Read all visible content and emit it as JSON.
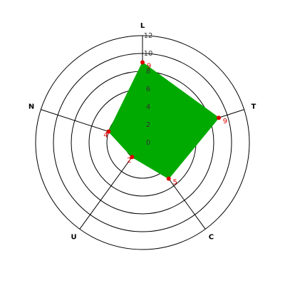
{
  "chart_data": {
    "type": "radar",
    "categories": [
      "L",
      "T",
      "C",
      "U",
      "N"
    ],
    "values": [
      9,
      9,
      5,
      2,
      4
    ],
    "color": "#00aa00",
    "point_color": "#dd0000",
    "rlim": [
      0,
      12
    ],
    "rticks": [
      0,
      2,
      4,
      6,
      8,
      10,
      12
    ],
    "grid": true
  }
}
